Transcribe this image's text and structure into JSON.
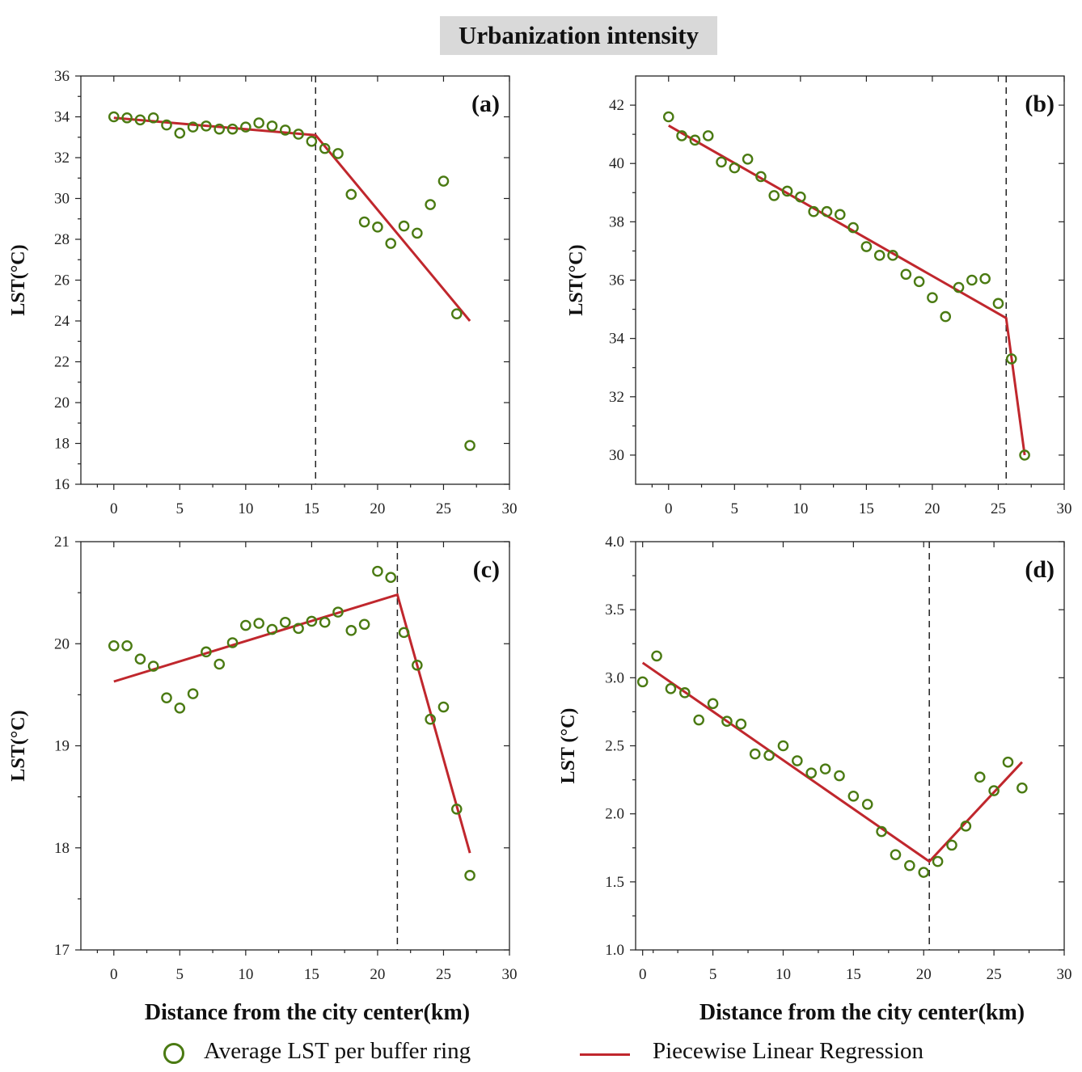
{
  "figure_title": "Urbanization intensity",
  "legend": {
    "points_label": "Average LST per buffer ring",
    "line_label": "Piecewise Linear Regression",
    "points_color": "#4a7a12",
    "line_color": "#c0272d"
  },
  "chart_data": [
    {
      "type": "scatter",
      "panel": "(a)",
      "xlabel": "",
      "ylabel": "LST(°C)",
      "xlim": [
        -2.5,
        30
      ],
      "ylim": [
        16,
        36
      ],
      "xticks": [
        0,
        5,
        10,
        15,
        20,
        25,
        30
      ],
      "yticks": [
        16,
        18,
        20,
        22,
        24,
        26,
        28,
        30,
        32,
        34,
        36
      ],
      "x": [
        0,
        1,
        2,
        3,
        4,
        5,
        6,
        7,
        8,
        9,
        10,
        11,
        12,
        13,
        14,
        15,
        16,
        17,
        18,
        19,
        20,
        21,
        22,
        23,
        24,
        25,
        26,
        27
      ],
      "y": [
        34.0,
        33.95,
        33.85,
        33.95,
        33.6,
        33.2,
        33.5,
        33.55,
        33.4,
        33.4,
        33.5,
        33.7,
        33.55,
        33.35,
        33.15,
        32.8,
        32.45,
        32.2,
        30.2,
        28.85,
        28.6,
        27.8,
        28.65,
        28.3,
        29.7,
        30.85,
        24.35,
        17.9
      ],
      "regression": [
        [
          0,
          33.95
        ],
        [
          15.3,
          33.1
        ],
        [
          27,
          24.0
        ]
      ],
      "breakpoint": 15.3
    },
    {
      "type": "scatter",
      "panel": "(b)",
      "xlabel": "",
      "ylabel": "LST(°C)",
      "xlim": [
        -2.5,
        30
      ],
      "ylim": [
        29,
        43
      ],
      "xticks": [
        0,
        5,
        10,
        15,
        20,
        25,
        30
      ],
      "yticks": [
        30,
        32,
        34,
        36,
        38,
        40,
        42
      ],
      "x": [
        0,
        1,
        2,
        3,
        4,
        5,
        6,
        7,
        8,
        9,
        10,
        11,
        12,
        13,
        14,
        15,
        16,
        17,
        18,
        19,
        20,
        21,
        22,
        23,
        24,
        25,
        26,
        27
      ],
      "y": [
        41.6,
        40.95,
        40.8,
        40.95,
        40.05,
        39.85,
        40.15,
        39.55,
        38.9,
        39.05,
        38.85,
        38.35,
        38.35,
        38.25,
        37.8,
        37.15,
        36.85,
        36.85,
        36.2,
        35.95,
        35.4,
        34.75,
        35.75,
        36.0,
        36.05,
        35.2,
        33.3,
        30.0
      ],
      "regression": [
        [
          0,
          41.3
        ],
        [
          25.6,
          34.7
        ],
        [
          27,
          30.0
        ]
      ],
      "breakpoint": 25.6
    },
    {
      "type": "scatter",
      "panel": "(c)",
      "xlabel": "Distance from the city center(km)",
      "ylabel": "LST(°C)",
      "xlim": [
        -2.5,
        30
      ],
      "ylim": [
        17,
        21
      ],
      "xticks": [
        0,
        5,
        10,
        15,
        20,
        25,
        30
      ],
      "yticks": [
        17,
        18,
        19,
        20,
        21
      ],
      "x": [
        0,
        1,
        2,
        3,
        4,
        5,
        6,
        7,
        8,
        9,
        10,
        11,
        12,
        13,
        14,
        15,
        16,
        17,
        18,
        19,
        20,
        21,
        22,
        23,
        24,
        25,
        26,
        27
      ],
      "y": [
        19.98,
        19.98,
        19.85,
        19.78,
        19.47,
        19.37,
        19.51,
        19.92,
        19.8,
        20.01,
        20.18,
        20.2,
        20.14,
        20.21,
        20.15,
        20.22,
        20.21,
        20.31,
        20.13,
        20.19,
        20.71,
        20.65,
        20.11,
        19.79,
        19.26,
        19.38,
        18.38,
        17.73
      ],
      "regression": [
        [
          0,
          19.63
        ],
        [
          21.5,
          20.48
        ],
        [
          27,
          17.95
        ]
      ],
      "breakpoint": 21.5
    },
    {
      "type": "scatter",
      "panel": "(d)",
      "xlabel": "Distance from the city center(km)",
      "ylabel": "LST (°C)",
      "xlim": [
        -0.5,
        30
      ],
      "ylim": [
        1.0,
        4.0
      ],
      "xticks": [
        0,
        5,
        10,
        15,
        20,
        25,
        30
      ],
      "yticks": [
        1.0,
        1.5,
        2.0,
        2.5,
        3.0,
        3.5,
        4.0
      ],
      "x": [
        0,
        1,
        2,
        3,
        4,
        5,
        6,
        7,
        8,
        9,
        10,
        11,
        12,
        13,
        14,
        15,
        16,
        17,
        18,
        19,
        20,
        21,
        22,
        23,
        24,
        25,
        26,
        27
      ],
      "y": [
        2.97,
        3.16,
        2.92,
        2.89,
        2.69,
        2.81,
        2.68,
        2.66,
        2.44,
        2.43,
        2.5,
        2.39,
        2.3,
        2.33,
        2.28,
        2.13,
        2.07,
        1.87,
        1.7,
        1.62,
        1.57,
        1.65,
        1.77,
        1.91,
        2.27,
        2.17,
        2.38,
        2.19
      ],
      "regression": [
        [
          0,
          3.11
        ],
        [
          20.4,
          1.65
        ],
        [
          27,
          2.38
        ]
      ],
      "breakpoint": 20.4
    }
  ]
}
